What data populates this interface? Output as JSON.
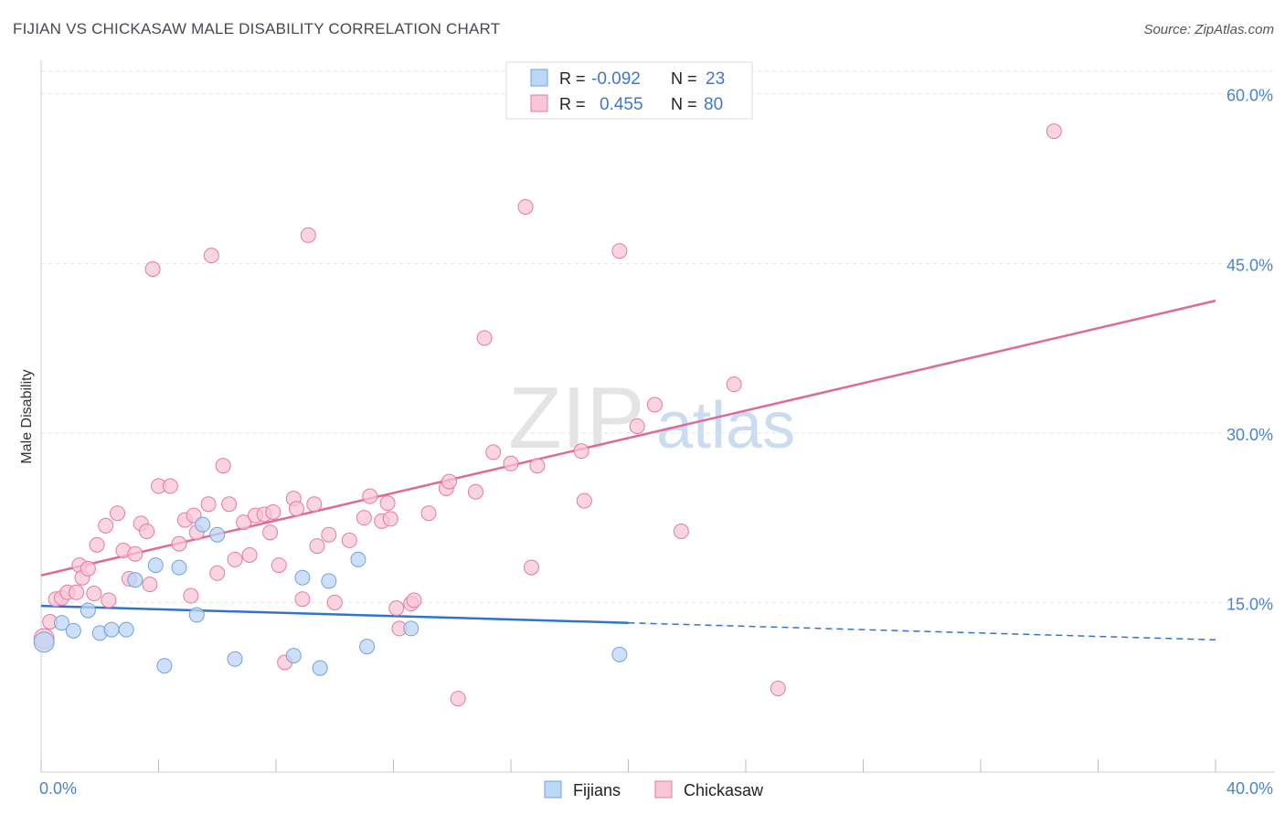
{
  "title": "FIJIAN VS CHICKASAW MALE DISABILITY CORRELATION CHART",
  "source": "Source: ZipAtlas.com",
  "watermark": {
    "zip": "ZIP",
    "atlas": "atlas"
  },
  "colors": {
    "fijians": "#6fa3e0",
    "fijians_fill": "#bcd6f5",
    "chickasaw": "#e8799e",
    "chickasaw_fill": "#f8c6d6",
    "fijians_line": "#2f74d0",
    "chickasaw_line": "#e06a96",
    "axis_text": "#4a84cc"
  },
  "legend_top": [
    {
      "r_label": "R =",
      "r_value": "-0.092",
      "n_label": "N =",
      "n_value": "23",
      "color": "#6fa3e0"
    },
    {
      "r_label": "R =",
      "r_value": "0.455",
      "n_label": "N =",
      "n_value": "80",
      "color": "#e8799e"
    }
  ],
  "legend_bottom": [
    {
      "label": "Fijians"
    },
    {
      "label": "Chickasaw"
    }
  ],
  "chart_data": {
    "type": "scatter",
    "title": "FIJIAN VS CHICKASAW MALE DISABILITY CORRELATION CHART",
    "xlabel": "",
    "ylabel": "Male Disability",
    "xlim": [
      0,
      40
    ],
    "ylim": [
      0,
      62
    ],
    "x_tick_labels": [
      "0.0%",
      "40.0%"
    ],
    "y_ticks": [
      15,
      30,
      45,
      60
    ],
    "y_tick_labels": [
      "15.0%",
      "30.0%",
      "45.0%",
      "60.0%"
    ],
    "grid": true,
    "series": [
      {
        "name": "Fijians",
        "trend": {
          "x0": 0,
          "y0": 14.7,
          "x1": 20,
          "y1": 13.2,
          "dashed_to_x": 40,
          "dashed_to_y": 11.7
        },
        "points": [
          [
            0.1,
            11.5
          ],
          [
            0.7,
            13.2
          ],
          [
            1.1,
            12.5
          ],
          [
            1.6,
            14.3
          ],
          [
            2.0,
            12.3
          ],
          [
            2.4,
            12.6
          ],
          [
            2.9,
            12.6
          ],
          [
            3.2,
            17.0
          ],
          [
            3.9,
            18.3
          ],
          [
            4.2,
            9.4
          ],
          [
            4.7,
            18.1
          ],
          [
            5.3,
            13.9
          ],
          [
            5.5,
            21.9
          ],
          [
            6.0,
            21.0
          ],
          [
            6.6,
            10.0
          ],
          [
            8.6,
            10.3
          ],
          [
            8.9,
            17.2
          ],
          [
            9.5,
            9.2
          ],
          [
            9.8,
            16.9
          ],
          [
            10.8,
            18.8
          ],
          [
            11.1,
            11.1
          ],
          [
            12.6,
            12.7
          ],
          [
            19.7,
            10.4
          ]
        ]
      },
      {
        "name": "Chickasaw",
        "trend": {
          "x0": 0,
          "y0": 17.4,
          "x1": 40,
          "y1": 41.7
        },
        "points": [
          [
            0.1,
            11.8
          ],
          [
            0.3,
            13.3
          ],
          [
            0.5,
            15.3
          ],
          [
            0.7,
            15.4
          ],
          [
            0.9,
            15.9
          ],
          [
            1.2,
            15.9
          ],
          [
            1.3,
            18.3
          ],
          [
            1.4,
            17.2
          ],
          [
            1.6,
            18.0
          ],
          [
            1.8,
            15.8
          ],
          [
            1.9,
            20.1
          ],
          [
            2.2,
            21.8
          ],
          [
            2.3,
            15.2
          ],
          [
            2.6,
            22.9
          ],
          [
            2.8,
            19.6
          ],
          [
            3.0,
            17.1
          ],
          [
            3.2,
            19.3
          ],
          [
            3.4,
            22.0
          ],
          [
            3.6,
            21.3
          ],
          [
            3.7,
            16.6
          ],
          [
            4.0,
            25.3
          ],
          [
            4.4,
            25.3
          ],
          [
            4.7,
            20.2
          ],
          [
            4.9,
            22.3
          ],
          [
            5.1,
            15.6
          ],
          [
            5.2,
            22.7
          ],
          [
            5.3,
            21.2
          ],
          [
            5.7,
            23.7
          ],
          [
            6.0,
            17.6
          ],
          [
            6.2,
            27.1
          ],
          [
            6.4,
            23.7
          ],
          [
            6.6,
            18.8
          ],
          [
            6.9,
            22.1
          ],
          [
            7.1,
            19.2
          ],
          [
            7.3,
            22.7
          ],
          [
            7.6,
            22.8
          ],
          [
            7.8,
            21.2
          ],
          [
            7.9,
            23.0
          ],
          [
            8.1,
            18.3
          ],
          [
            8.3,
            9.7
          ],
          [
            8.6,
            24.2
          ],
          [
            8.7,
            23.3
          ],
          [
            8.9,
            15.3
          ],
          [
            9.3,
            23.7
          ],
          [
            9.4,
            20.0
          ],
          [
            9.8,
            21.0
          ],
          [
            10.0,
            15.0
          ],
          [
            10.5,
            20.5
          ],
          [
            11.0,
            22.5
          ],
          [
            11.2,
            24.4
          ],
          [
            11.6,
            22.2
          ],
          [
            11.8,
            23.8
          ],
          [
            12.1,
            14.5
          ],
          [
            12.2,
            12.7
          ],
          [
            12.6,
            14.9
          ],
          [
            12.7,
            15.2
          ],
          [
            13.2,
            22.9
          ],
          [
            13.8,
            25.1
          ],
          [
            13.9,
            25.7
          ],
          [
            14.2,
            6.5
          ],
          [
            14.8,
            24.8
          ],
          [
            15.1,
            38.4
          ],
          [
            15.4,
            28.3
          ],
          [
            16.0,
            27.3
          ],
          [
            16.5,
            50.0
          ],
          [
            16.7,
            18.1
          ],
          [
            16.9,
            27.1
          ],
          [
            18.4,
            28.4
          ],
          [
            18.5,
            24.0
          ],
          [
            19.7,
            46.1
          ],
          [
            20.3,
            30.6
          ],
          [
            20.9,
            32.5
          ],
          [
            21.8,
            21.3
          ],
          [
            23.6,
            34.3
          ],
          [
            25.1,
            7.4
          ],
          [
            34.5,
            56.7
          ],
          [
            3.8,
            44.5
          ],
          [
            5.8,
            45.7
          ],
          [
            9.1,
            47.5
          ],
          [
            11.9,
            22.4
          ]
        ]
      }
    ]
  }
}
